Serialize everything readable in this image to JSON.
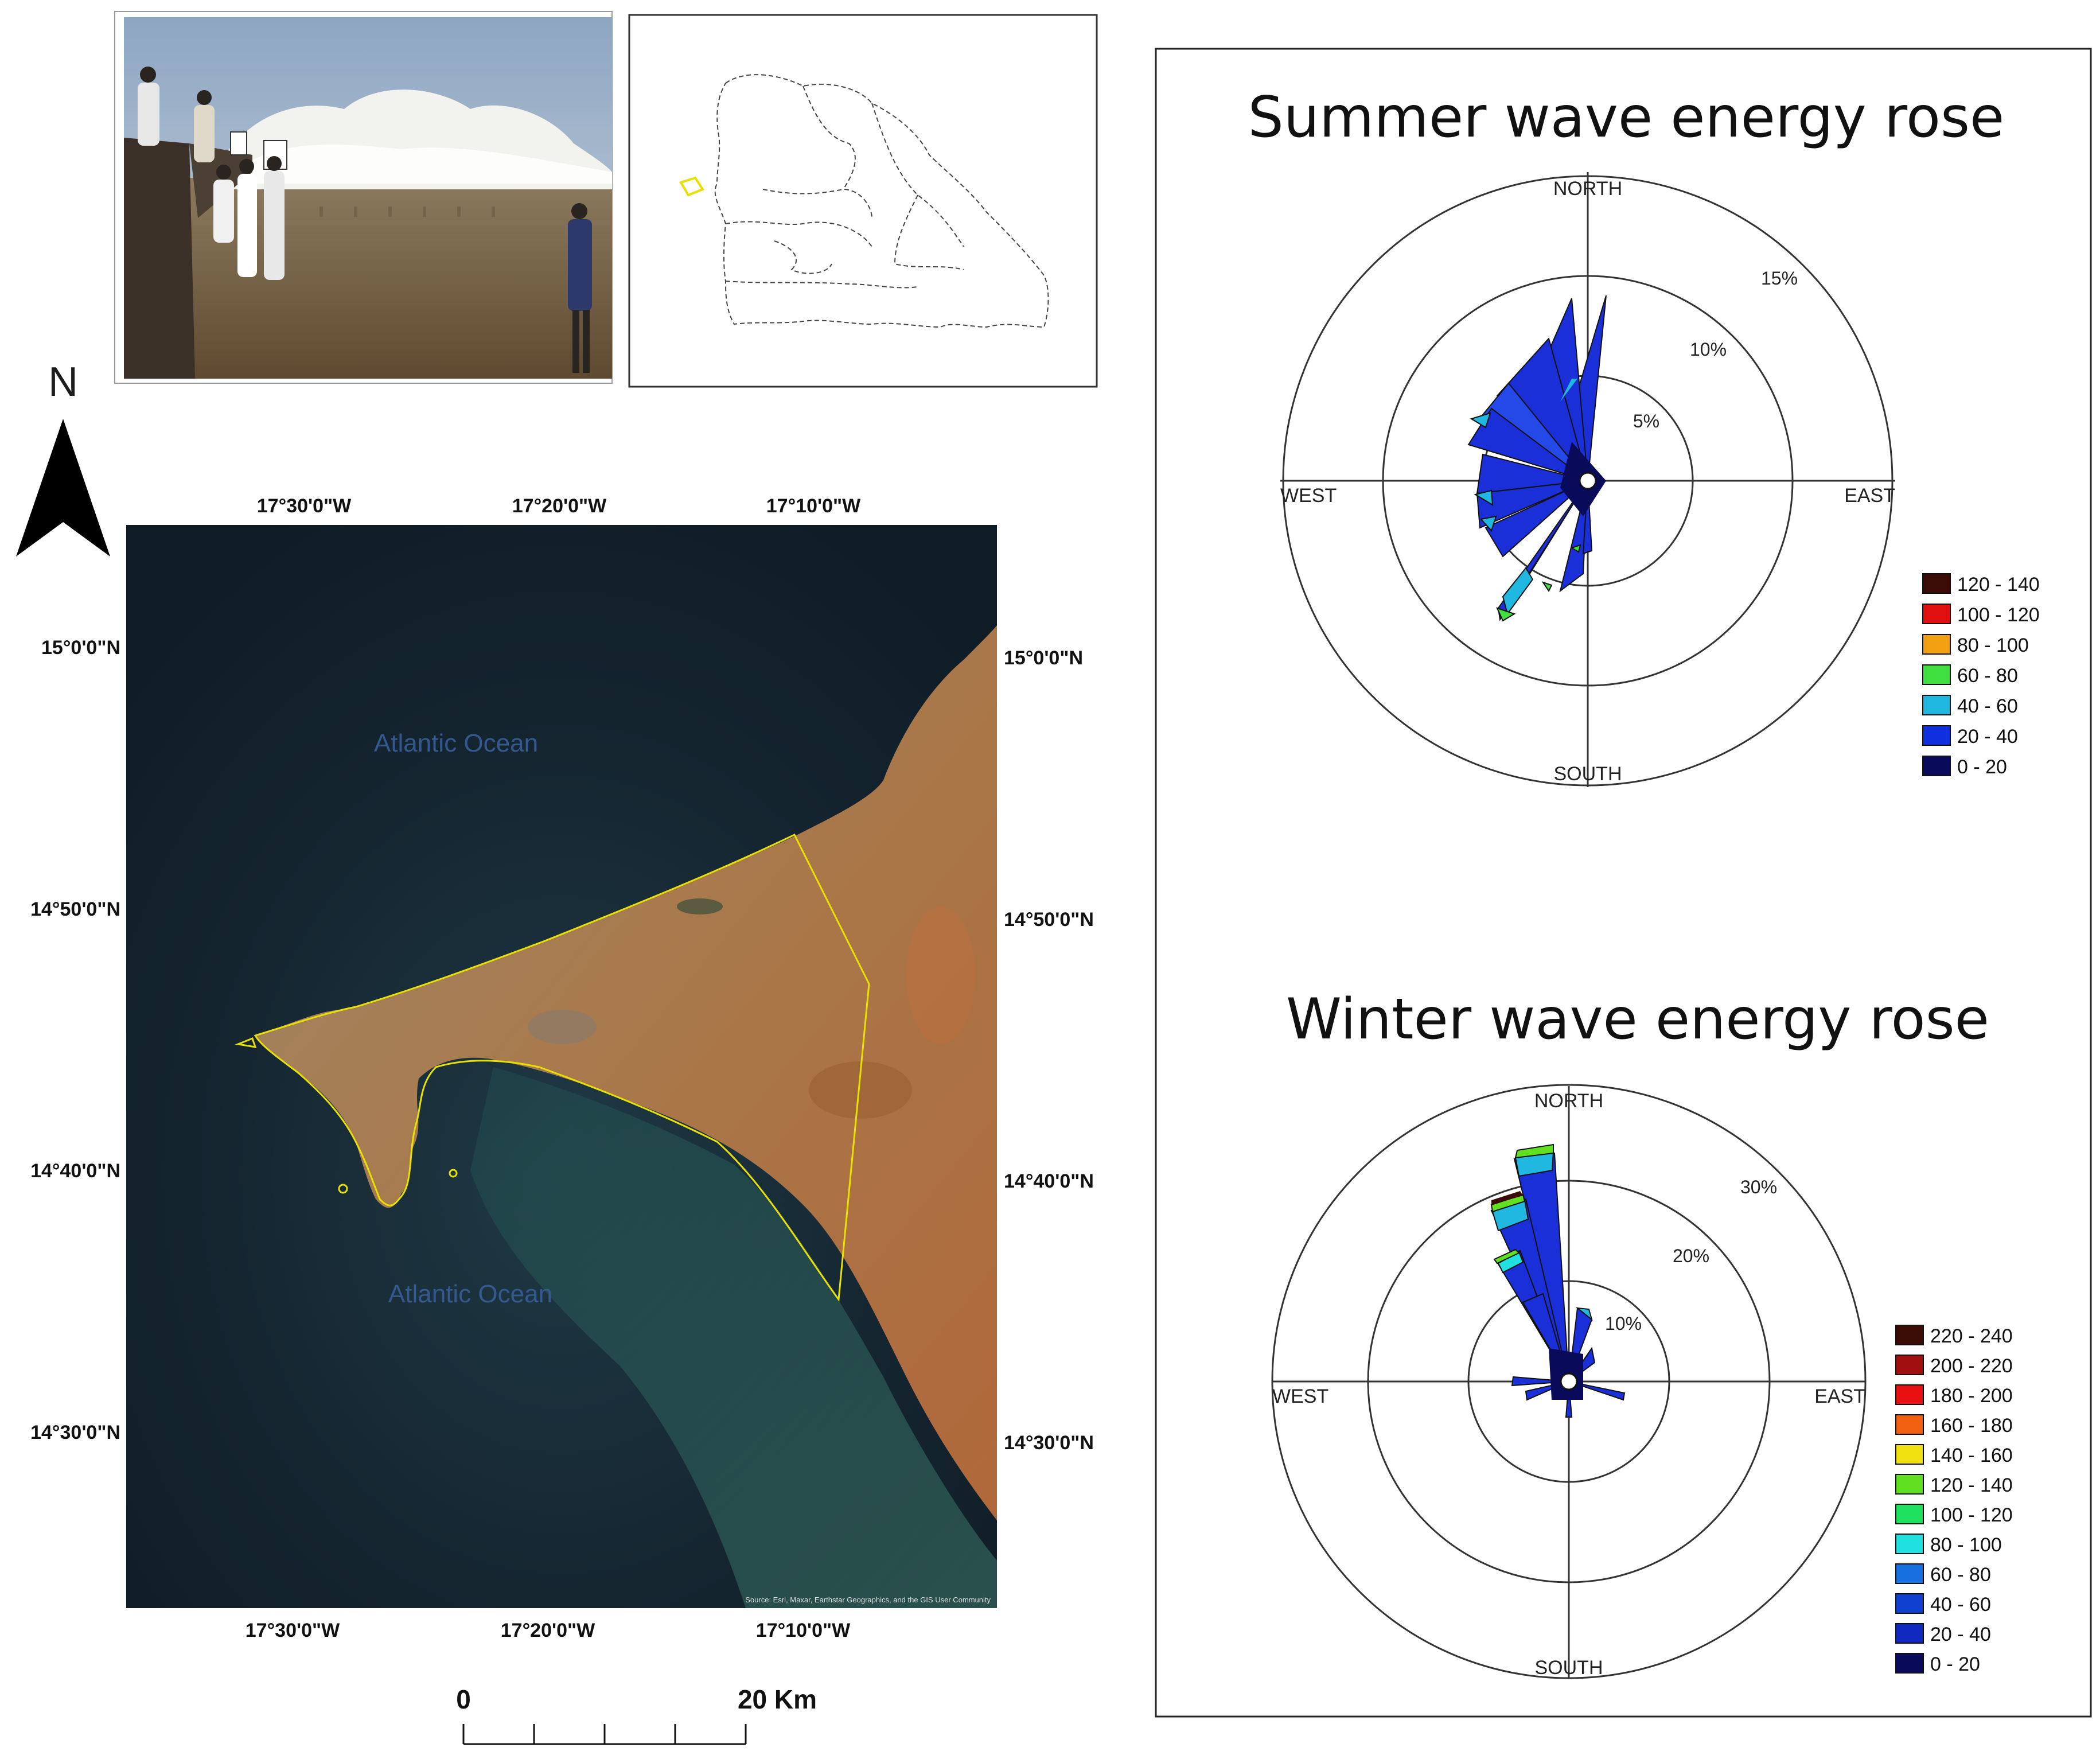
{
  "north_arrow": {
    "label": "N",
    "icon": "north-arrow-icon"
  },
  "photo": {
    "icon": "coastal-wave-photo"
  },
  "inset_map": {
    "icon": "country-outline-icon"
  },
  "map": {
    "top_lon_labels": [
      "17°30'0\"W",
      "17°20'0\"W",
      "17°10'0\"W"
    ],
    "bottom_lon_labels": [
      "17°30'0\"W",
      "17°20'0\"W",
      "17°10'0\"W"
    ],
    "left_lat_labels": [
      "15°0'0\"N",
      "14°50'0\"N",
      "14°40'0\"N",
      "14°30'0\"N"
    ],
    "right_lat_labels": [
      "15°0'0\"N",
      "14°50'0\"N",
      "14°40'0\"N",
      "14°30'0\"N"
    ],
    "ocean_north": "Atlantic  Ocean",
    "ocean_south": "Atlantic  Ocean",
    "credit": "Source: Esri, Maxar, Earthstar Geographics, and the GIS User Community",
    "boundary_color": "#e8e000"
  },
  "scale_bar": {
    "start": "0",
    "end": "20 Km"
  },
  "summer_rose": {
    "title": "Summer wave energy rose",
    "north": "NORTH",
    "south": "SOUTH",
    "west": "WEST",
    "east": "EAST",
    "ring_labels": [
      "5%",
      "10%",
      "15%"
    ],
    "legend": [
      {
        "label": "120 - 140",
        "color": "#3a0a05"
      },
      {
        "label": "100 - 120",
        "color": "#e01010"
      },
      {
        "label": "80 - 100",
        "color": "#f0a010"
      },
      {
        "label": "60 - 80",
        "color": "#40e040"
      },
      {
        "label": "40 - 60",
        "color": "#20b8e0"
      },
      {
        "label": "20 - 40",
        "color": "#1030e0"
      },
      {
        "label": "0 - 20",
        "color": "#0a0a5a"
      }
    ]
  },
  "winter_rose": {
    "title": "Winter wave energy rose",
    "north": "NORTH",
    "south": "SOUTH",
    "west": "WEST",
    "east": "EAST",
    "ring_labels": [
      "10%",
      "20%",
      "30%"
    ],
    "legend": [
      {
        "label": "220 - 240",
        "color": "#3a0a05"
      },
      {
        "label": "200 - 220",
        "color": "#a01010"
      },
      {
        "label": "180 - 200",
        "color": "#e81010"
      },
      {
        "label": "160 - 180",
        "color": "#f06010"
      },
      {
        "label": "140 - 160",
        "color": "#f0e010"
      },
      {
        "label": "120 - 140",
        "color": "#60e020"
      },
      {
        "label": "100 - 120",
        "color": "#20e060"
      },
      {
        "label": "80 - 100",
        "color": "#20e0e0"
      },
      {
        "label": "60 - 80",
        "color": "#1870e0"
      },
      {
        "label": "40 - 60",
        "color": "#1040d0"
      },
      {
        "label": "20 - 40",
        "color": "#1028c0"
      },
      {
        "label": "0 - 20",
        "color": "#0a0a5a"
      }
    ]
  }
}
